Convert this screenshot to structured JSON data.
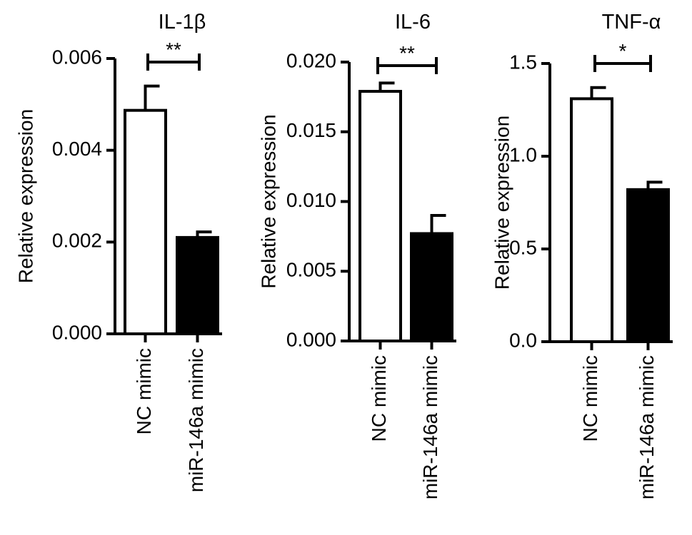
{
  "chart_data": [
    {
      "type": "bar",
      "title": "IL-1β",
      "ylabel": "Relative expression",
      "categories": [
        "NC mimic",
        "miR-146a mimic"
      ],
      "values": [
        0.00487,
        0.0021
      ],
      "error_upper": [
        0.0054,
        0.00222
      ],
      "ylim": [
        0,
        0.006
      ],
      "yticks": [
        "0.000",
        "0.002",
        "0.004",
        "0.006"
      ],
      "significance": "**",
      "bar_colors": [
        "#ffffff",
        "#000000"
      ]
    },
    {
      "type": "bar",
      "title": "IL-6",
      "ylabel": "Relative expression",
      "categories": [
        "NC mimic",
        "miR-146a mimic"
      ],
      "values": [
        0.0179,
        0.0077
      ],
      "error_upper": [
        0.0185,
        0.009
      ],
      "ylim": [
        0,
        0.02
      ],
      "yticks": [
        "0.000",
        "0.005",
        "0.010",
        "0.015",
        "0.020"
      ],
      "significance": "**",
      "bar_colors": [
        "#ffffff",
        "#000000"
      ]
    },
    {
      "type": "bar",
      "title": "TNF-α",
      "ylabel": "Relative expression",
      "categories": [
        "NC mimic",
        "miR-146a mimic"
      ],
      "values": [
        1.31,
        0.82
      ],
      "error_upper": [
        1.37,
        0.86
      ],
      "ylim": [
        0,
        1.5
      ],
      "yticks": [
        "0.0",
        "0.5",
        "1.0",
        "1.5"
      ],
      "significance": "*",
      "bar_colors": [
        "#ffffff",
        "#000000"
      ]
    }
  ]
}
